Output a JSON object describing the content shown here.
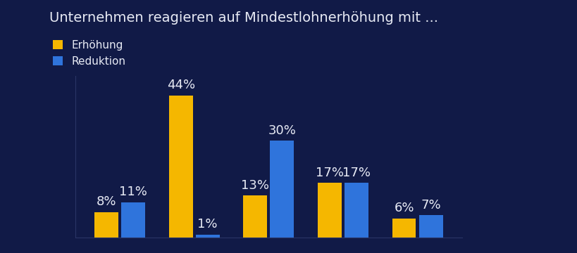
{
  "chart_data": {
    "type": "bar",
    "title": "Unternehmen reagieren auf Mindestlohnerhöhung mit ...",
    "categories": [
      null,
      null,
      null,
      null,
      null
    ],
    "series": [
      {
        "name": "Erhöhung",
        "color": "#f5b700",
        "values": [
          8,
          44,
          13,
          17,
          6
        ]
      },
      {
        "name": "Reduktion",
        "color": "#2f74dc",
        "values": [
          11,
          1,
          30,
          17,
          7
        ]
      }
    ],
    "value_labels_suffix_note": null,
    "ylim": [
      0,
      50
    ],
    "data_labels": true,
    "legend": "upper left",
    "tick_labels": false,
    "grid": false
  }
}
